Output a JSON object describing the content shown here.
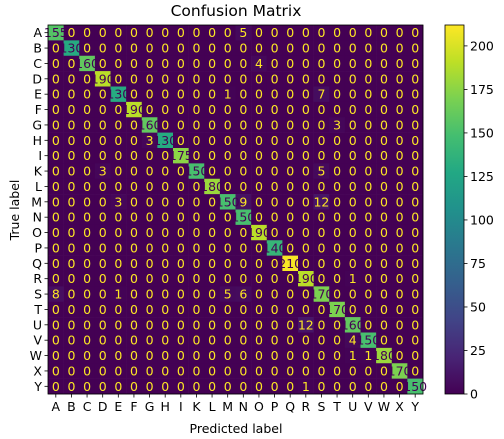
{
  "chart_data": {
    "type": "heatmap",
    "title": "Confusion Matrix",
    "xlabel": "Predicted label",
    "ylabel": "True label",
    "labels": [
      "A",
      "B",
      "C",
      "D",
      "E",
      "F",
      "G",
      "H",
      "I",
      "K",
      "L",
      "M",
      "N",
      "O",
      "P",
      "Q",
      "R",
      "S",
      "T",
      "U",
      "V",
      "W",
      "X",
      "Y"
    ],
    "matrix": [
      [
        155,
        0,
        0,
        0,
        0,
        0,
        0,
        0,
        0,
        0,
        0,
        0,
        5,
        0,
        0,
        0,
        0,
        0,
        0,
        0,
        0,
        0,
        0,
        0
      ],
      [
        0,
        130,
        0,
        0,
        0,
        0,
        0,
        0,
        0,
        0,
        0,
        0,
        0,
        0,
        0,
        0,
        0,
        0,
        0,
        0,
        0,
        0,
        0,
        0
      ],
      [
        0,
        0,
        160,
        0,
        0,
        0,
        0,
        0,
        0,
        0,
        0,
        0,
        0,
        4,
        0,
        0,
        0,
        0,
        0,
        0,
        0,
        0,
        0,
        0
      ],
      [
        0,
        0,
        0,
        190,
        0,
        0,
        0,
        0,
        0,
        0,
        0,
        0,
        0,
        0,
        0,
        0,
        0,
        0,
        0,
        0,
        0,
        0,
        0,
        0
      ],
      [
        0,
        0,
        0,
        0,
        130,
        0,
        0,
        0,
        0,
        0,
        0,
        1,
        0,
        0,
        0,
        0,
        0,
        7,
        0,
        0,
        0,
        0,
        0,
        0
      ],
      [
        0,
        0,
        0,
        0,
        0,
        190,
        0,
        0,
        0,
        0,
        0,
        0,
        0,
        0,
        0,
        0,
        0,
        0,
        0,
        0,
        0,
        0,
        0,
        0
      ],
      [
        0,
        0,
        0,
        0,
        0,
        0,
        160,
        0,
        0,
        0,
        0,
        0,
        0,
        0,
        0,
        0,
        0,
        0,
        3,
        0,
        0,
        0,
        0,
        0
      ],
      [
        0,
        0,
        0,
        0,
        0,
        0,
        3,
        130,
        0,
        0,
        0,
        0,
        0,
        0,
        0,
        0,
        0,
        0,
        0,
        0,
        0,
        0,
        0,
        0
      ],
      [
        0,
        0,
        0,
        0,
        0,
        0,
        0,
        0,
        175,
        0,
        0,
        0,
        0,
        0,
        0,
        0,
        0,
        0,
        0,
        0,
        0,
        0,
        0,
        0
      ],
      [
        0,
        0,
        0,
        3,
        0,
        0,
        0,
        0,
        0,
        150,
        0,
        0,
        0,
        0,
        0,
        0,
        0,
        5,
        0,
        0,
        0,
        0,
        0,
        0
      ],
      [
        0,
        0,
        0,
        0,
        0,
        0,
        0,
        0,
        0,
        0,
        180,
        0,
        0,
        0,
        0,
        0,
        0,
        0,
        0,
        0,
        0,
        0,
        0,
        0
      ],
      [
        0,
        0,
        0,
        0,
        3,
        0,
        0,
        0,
        0,
        0,
        0,
        150,
        9,
        0,
        0,
        0,
        0,
        12,
        0,
        0,
        0,
        0,
        0,
        0
      ],
      [
        0,
        0,
        0,
        0,
        0,
        0,
        0,
        0,
        0,
        0,
        0,
        0,
        150,
        0,
        0,
        0,
        0,
        0,
        0,
        0,
        0,
        0,
        0,
        0
      ],
      [
        0,
        0,
        0,
        0,
        0,
        0,
        0,
        0,
        0,
        0,
        0,
        0,
        0,
        190,
        0,
        0,
        0,
        0,
        0,
        0,
        0,
        0,
        0,
        0
      ],
      [
        0,
        0,
        0,
        0,
        0,
        0,
        0,
        0,
        0,
        0,
        0,
        0,
        0,
        0,
        140,
        0,
        0,
        0,
        0,
        0,
        0,
        0,
        0,
        0
      ],
      [
        0,
        0,
        0,
        0,
        0,
        0,
        0,
        0,
        0,
        0,
        0,
        0,
        0,
        0,
        0,
        210,
        0,
        0,
        0,
        0,
        0,
        0,
        0,
        0
      ],
      [
        0,
        0,
        0,
        0,
        0,
        0,
        0,
        0,
        0,
        0,
        0,
        0,
        0,
        0,
        0,
        0,
        190,
        0,
        0,
        1,
        0,
        0,
        0,
        0
      ],
      [
        8,
        0,
        0,
        0,
        1,
        0,
        0,
        0,
        0,
        0,
        0,
        5,
        6,
        0,
        0,
        0,
        0,
        170,
        0,
        0,
        0,
        0,
        0,
        0
      ],
      [
        0,
        0,
        0,
        0,
        0,
        0,
        0,
        0,
        0,
        0,
        0,
        0,
        0,
        0,
        0,
        0,
        0,
        0,
        170,
        0,
        0,
        0,
        0,
        0
      ],
      [
        0,
        0,
        0,
        0,
        0,
        0,
        0,
        0,
        0,
        0,
        0,
        0,
        0,
        0,
        0,
        0,
        12,
        0,
        0,
        160,
        0,
        0,
        0,
        0
      ],
      [
        0,
        0,
        0,
        0,
        0,
        0,
        0,
        0,
        0,
        0,
        0,
        0,
        0,
        0,
        0,
        0,
        0,
        0,
        0,
        4,
        150,
        0,
        0,
        0
      ],
      [
        0,
        0,
        0,
        0,
        0,
        0,
        0,
        0,
        0,
        0,
        0,
        0,
        0,
        0,
        0,
        0,
        0,
        0,
        0,
        1,
        1,
        180,
        0,
        0
      ],
      [
        0,
        0,
        0,
        0,
        0,
        0,
        0,
        0,
        0,
        0,
        0,
        0,
        0,
        0,
        0,
        0,
        0,
        0,
        0,
        0,
        0,
        0,
        170,
        0
      ],
      [
        0,
        0,
        0,
        0,
        0,
        0,
        0,
        0,
        0,
        0,
        0,
        0,
        0,
        0,
        0,
        0,
        1,
        0,
        0,
        0,
        0,
        0,
        0,
        150
      ]
    ],
    "colorbar": {
      "min": 0,
      "max": 212,
      "ticks": [
        0,
        25,
        50,
        75,
        100,
        125,
        150,
        175,
        200
      ],
      "colormap": "viridis"
    },
    "colors": {
      "low_text": "#fde725",
      "high_text": "#440154",
      "threshold": 106
    }
  }
}
